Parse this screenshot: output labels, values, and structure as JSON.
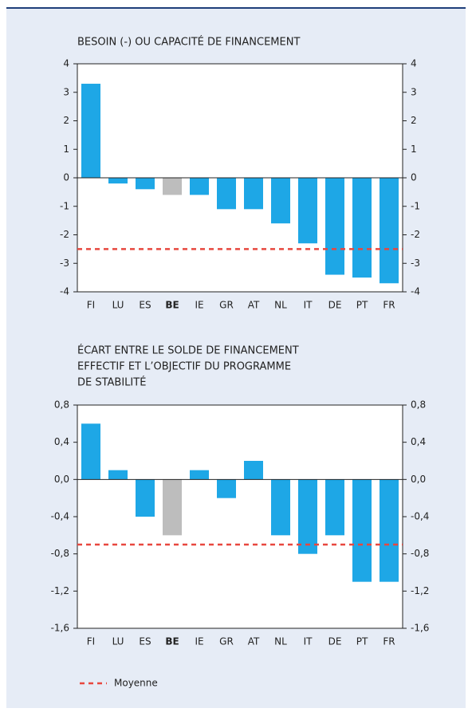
{
  "chart_data": [
    {
      "type": "bar",
      "title": [
        "BESOIN (-) OU CAPACITÉ DE FINANCEMENT"
      ],
      "categories": [
        "FI",
        "LU",
        "ES",
        "BE",
        "IE",
        "GR",
        "AT",
        "NL",
        "IT",
        "DE",
        "PT",
        "FR"
      ],
      "values": [
        3.3,
        -0.2,
        -0.4,
        -0.6,
        -0.6,
        -1.1,
        -1.1,
        -1.6,
        -2.3,
        -3.4,
        -3.5,
        -3.7
      ],
      "color": "#1ea7e6",
      "bar_colors": [
        "#1ea7e6",
        "#1ea7e6",
        "#1ea7e6",
        "#bdbdbd",
        "#1ea7e6",
        "#1ea7e6",
        "#1ea7e6",
        "#1ea7e6",
        "#1ea7e6",
        "#1ea7e6",
        "#1ea7e6",
        "#1ea7e6"
      ],
      "mean": -2.5,
      "mean_color": "#e8473f",
      "ylim": [
        -4,
        4
      ],
      "yticks": [
        -4,
        -3,
        -2,
        -1,
        0,
        1,
        2,
        3,
        4
      ]
    },
    {
      "type": "bar",
      "title": [
        "ÉCART ENTRE LE SOLDE DE FINANCEMENT",
        "EFFECTIF ET L’OBJECTIF DU PROGRAMME",
        "DE STABILITÉ"
      ],
      "categories": [
        "FI",
        "LU",
        "ES",
        "BE",
        "IE",
        "GR",
        "AT",
        "NL",
        "IT",
        "DE",
        "PT",
        "FR"
      ],
      "values": [
        0.6,
        0.1,
        -0.4,
        -0.6,
        0.1,
        -0.2,
        0.2,
        -0.6,
        -0.8,
        -0.6,
        -1.1,
        -1.1
      ],
      "color": "#1ea7e6",
      "bar_colors": [
        "#1ea7e6",
        "#1ea7e6",
        "#1ea7e6",
        "#bdbdbd",
        "#1ea7e6",
        "#1ea7e6",
        "#1ea7e6",
        "#1ea7e6",
        "#1ea7e6",
        "#1ea7e6",
        "#1ea7e6",
        "#1ea7e6"
      ],
      "mean": -0.7,
      "mean_color": "#e8473f",
      "ylim": [
        -1.6,
        0.8
      ],
      "yticks": [
        {
          "value": -1.6,
          "label": "-1,6"
        },
        {
          "value": -1.2,
          "label": "-1,2"
        },
        {
          "value": -0.8,
          "label": "-0,8"
        },
        {
          "value": -0.4,
          "label": "-0,4"
        },
        {
          "value": 0,
          "label": "0,0"
        },
        {
          "value": 0.4,
          "label": "0,4"
        },
        {
          "value": 0.8,
          "label": "0,8"
        }
      ]
    }
  ],
  "legend": {
    "label": "Moyenne",
    "color": "#e8473f"
  }
}
